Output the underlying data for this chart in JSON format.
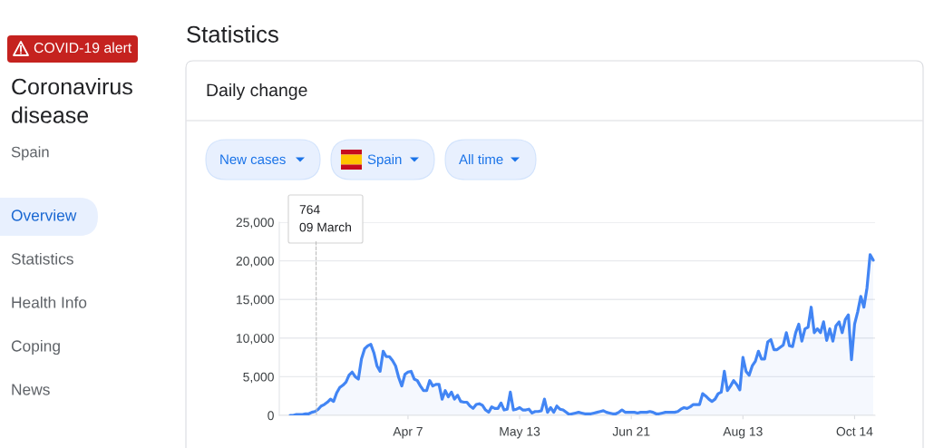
{
  "chart_data": {
    "type": "area",
    "title": "Statistics",
    "subtitle": "Daily change",
    "categories": [
      null,
      null,
      null,
      null,
      null,
      null,
      null,
      null,
      null,
      null,
      null,
      null,
      null,
      null,
      null,
      null,
      null,
      null,
      null,
      null,
      null,
      null,
      null,
      null,
      null,
      null,
      null,
      null,
      null,
      null,
      null,
      null,
      null,
      null,
      null,
      null,
      null,
      null,
      "Apr 7",
      null,
      null,
      null,
      null,
      null,
      null,
      null,
      null,
      null,
      null,
      null,
      null,
      null,
      null,
      null,
      null,
      null,
      null,
      null,
      null,
      null,
      null,
      null,
      null,
      null,
      null,
      null,
      null,
      null,
      null,
      null,
      null,
      null,
      null,
      null,
      "May 13",
      null,
      null,
      null,
      null,
      null,
      null,
      null,
      null,
      null,
      null,
      null,
      null,
      null,
      null,
      null,
      null,
      null,
      null,
      null,
      null,
      null,
      null,
      null,
      null,
      null,
      null,
      null,
      null,
      null,
      null,
      null,
      null,
      null,
      null,
      null,
      "Jun 21",
      null,
      null,
      null,
      null,
      null,
      null,
      null,
      null,
      null,
      null,
      null,
      null,
      null,
      null,
      null,
      null,
      null,
      null,
      null,
      null,
      null,
      null,
      null,
      null,
      null,
      null,
      null,
      null,
      null,
      null,
      null,
      null,
      null,
      null,
      null,
      "Aug 13",
      null,
      null,
      null,
      null,
      null,
      null,
      null,
      null,
      null,
      null,
      null,
      null,
      null,
      null,
      null,
      null,
      null,
      null,
      null,
      null,
      null,
      null,
      null,
      null,
      null,
      null,
      null,
      null,
      null,
      null,
      null,
      null,
      null,
      null,
      null,
      "Oct 14",
      null,
      null,
      null,
      null,
      null,
      null
    ],
    "series": [
      {
        "color": "#4285f4",
        "values": [
          0,
          0,
          100,
          100,
          100,
          200,
          200,
          400,
          500,
          764,
          1200,
          1400,
          1700,
          2100,
          1800,
          2900,
          3600,
          3900,
          4300,
          5200,
          5600,
          5000,
          4700,
          7300,
          8600,
          9000,
          9200,
          8100,
          6400,
          5700,
          8300,
          7600,
          7600,
          7100,
          6400,
          4900,
          3800,
          5300,
          5600,
          5700,
          4700,
          4500,
          3800,
          3200,
          3200,
          4500,
          3800,
          4000,
          4000,
          2100,
          3200,
          2400,
          3000,
          2100,
          2600,
          1800,
          1700,
          1700,
          1200,
          900,
          1400,
          1500,
          1300,
          700,
          400,
          1100,
          900,
          900,
          1600,
          700,
          800,
          3000,
          700,
          800,
          1000,
          700,
          700,
          800,
          300,
          500,
          500,
          600,
          2100,
          400,
          1000,
          400,
          1200,
          800,
          700,
          400,
          100,
          200,
          300,
          400,
          300,
          200,
          200,
          200,
          300,
          400,
          500,
          600,
          400,
          300,
          200,
          200,
          400,
          700,
          400,
          400,
          400,
          400,
          300,
          400,
          400,
          400,
          500,
          400,
          200,
          200,
          300,
          400,
          400,
          400,
          400,
          500,
          800,
          1000,
          900,
          1100,
          1400,
          1400,
          1400,
          2800,
          2500,
          2100,
          1800,
          2100,
          2800,
          3000,
          5700,
          3200,
          3800,
          4500,
          4000,
          3300,
          7500,
          5700,
          5200,
          6400,
          7000,
          8300,
          7300,
          7300,
          9500,
          9800,
          8500,
          8500,
          8800,
          9100,
          10700,
          9000,
          8900,
          10700,
          11800,
          9600,
          11200,
          11400,
          14000,
          10700,
          11200,
          10700,
          12100,
          9700,
          11200,
          9600,
          11600,
          12100,
          10700,
          12400,
          13000,
          7200,
          11800,
          13400,
          15400,
          14000,
          16500,
          20800,
          20100
        ]
      }
    ],
    "ylim": [
      0,
      25000
    ],
    "yticks": [
      0,
      {
        "value": 5000,
        "label": "5,000"
      },
      {
        "value": 10000,
        "label": "10,000"
      },
      {
        "value": 15000,
        "label": "15,000"
      },
      {
        "value": 20000,
        "label": "20,000"
      },
      {
        "value": 25000,
        "label": "25,000"
      }
    ],
    "grid": "y",
    "annotations": [
      "764\n09 March",
      "COVID-19 alert",
      "Coronavirus\ndisease",
      "Spain",
      "Overview",
      "Statistics",
      "Health Info",
      "Coping",
      "News",
      "New cases",
      "Spain",
      "All time"
    ]
  }
}
